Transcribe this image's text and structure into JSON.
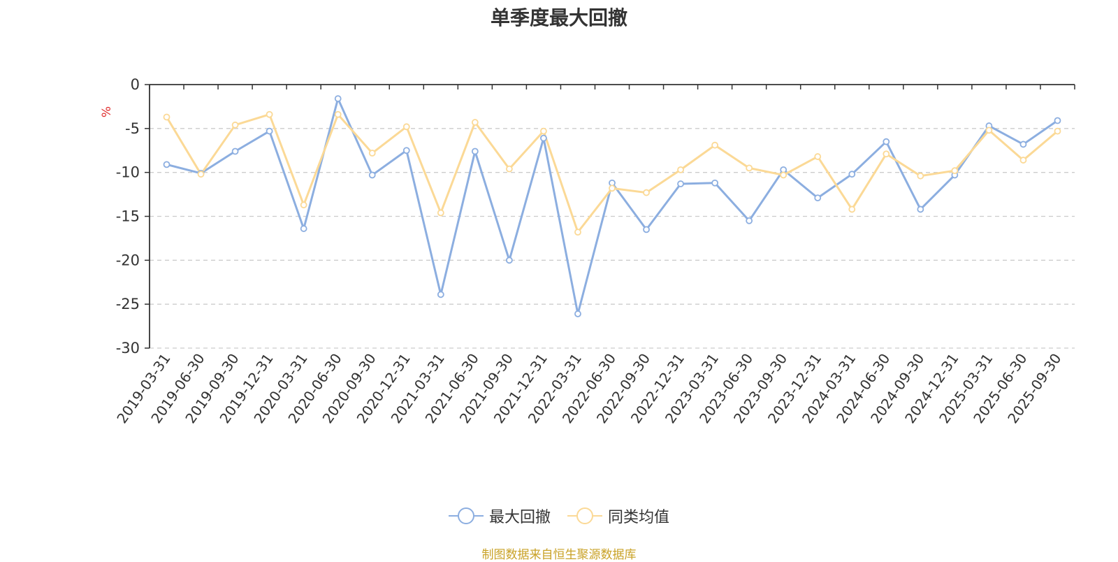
{
  "source_note": "制图数据来自恒生聚源数据库",
  "colors": {
    "series1": "#8caee0",
    "series2": "#fbd996",
    "grid": "#cccccc",
    "unit": "#e03030",
    "source": "#c9a227"
  },
  "chart_data": {
    "type": "line",
    "title": "单季度最大回撤",
    "ylabel": "%",
    "ylim": [
      -30,
      0
    ],
    "yticks": [
      0,
      -5,
      -10,
      -15,
      -20,
      -25,
      -30
    ],
    "grid": true,
    "legend_position": "bottom-center",
    "categories": [
      "2019-03-31",
      "2019-06-30",
      "2019-09-30",
      "2019-12-31",
      "2020-03-31",
      "2020-06-30",
      "2020-09-30",
      "2020-12-31",
      "2021-03-31",
      "2021-06-30",
      "2021-09-30",
      "2021-12-31",
      "2022-03-31",
      "2022-06-30",
      "2022-09-30",
      "2022-12-31",
      "2023-03-31",
      "2023-06-30",
      "2023-09-30",
      "2023-12-31",
      "2024-03-31",
      "2024-06-30",
      "2024-09-30",
      "2024-12-31",
      "2025-03-31",
      "2025-06-30",
      "2025-09-30"
    ],
    "series": [
      {
        "name": "最大回撤",
        "values": [
          -9.1,
          -10.1,
          -7.6,
          -5.3,
          -16.4,
          -1.6,
          -10.3,
          -7.5,
          -23.9,
          -7.6,
          -20.0,
          -6.1,
          -26.1,
          -11.2,
          -16.5,
          -11.3,
          -11.2,
          -15.5,
          -9.7,
          -12.9,
          -10.2,
          -6.5,
          -14.2,
          -10.3,
          -4.7,
          -6.8,
          -4.1
        ]
      },
      {
        "name": "同类均值",
        "values": [
          -3.7,
          -10.2,
          -4.6,
          -3.4,
          -13.7,
          -3.4,
          -7.8,
          -4.8,
          -14.6,
          -4.3,
          -9.6,
          -5.3,
          -16.8,
          -11.8,
          -12.3,
          -9.7,
          -6.9,
          -9.5,
          -10.3,
          -8.2,
          -14.2,
          -7.9,
          -10.4,
          -9.8,
          -5.2,
          -8.6,
          -5.3
        ]
      }
    ]
  }
}
